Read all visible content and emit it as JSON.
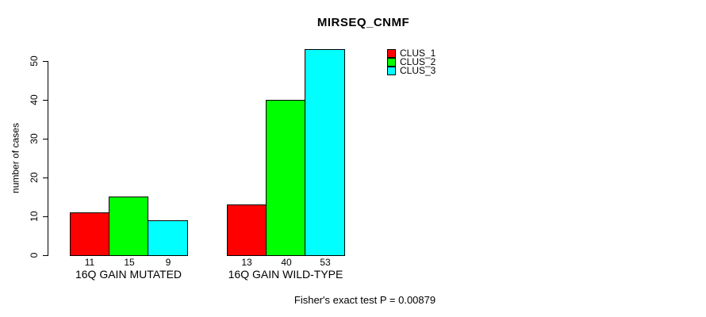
{
  "chart_data": {
    "type": "bar",
    "title": "MIRSEQ_CNMF",
    "xlabel": "",
    "ylabel": "number of cases",
    "categories": [
      "16Q GAIN MUTATED",
      "16Q GAIN WILD-TYPE"
    ],
    "series": [
      {
        "name": "CLUS_1",
        "color": "#FF0000",
        "values": [
          11,
          13
        ]
      },
      {
        "name": "CLUS_2",
        "color": "#00FF00",
        "values": [
          15,
          40
        ]
      },
      {
        "name": "CLUS_3",
        "color": "#00FFFF",
        "values": [
          9,
          53
        ]
      }
    ],
    "ylim": [
      0,
      50
    ],
    "yticks": [
      0,
      10,
      20,
      30,
      40,
      50
    ],
    "grid": false,
    "legend_position": "top-right",
    "bar_border_color": "#000000",
    "annotation": "Fisher's exact test P = 0.00879"
  }
}
